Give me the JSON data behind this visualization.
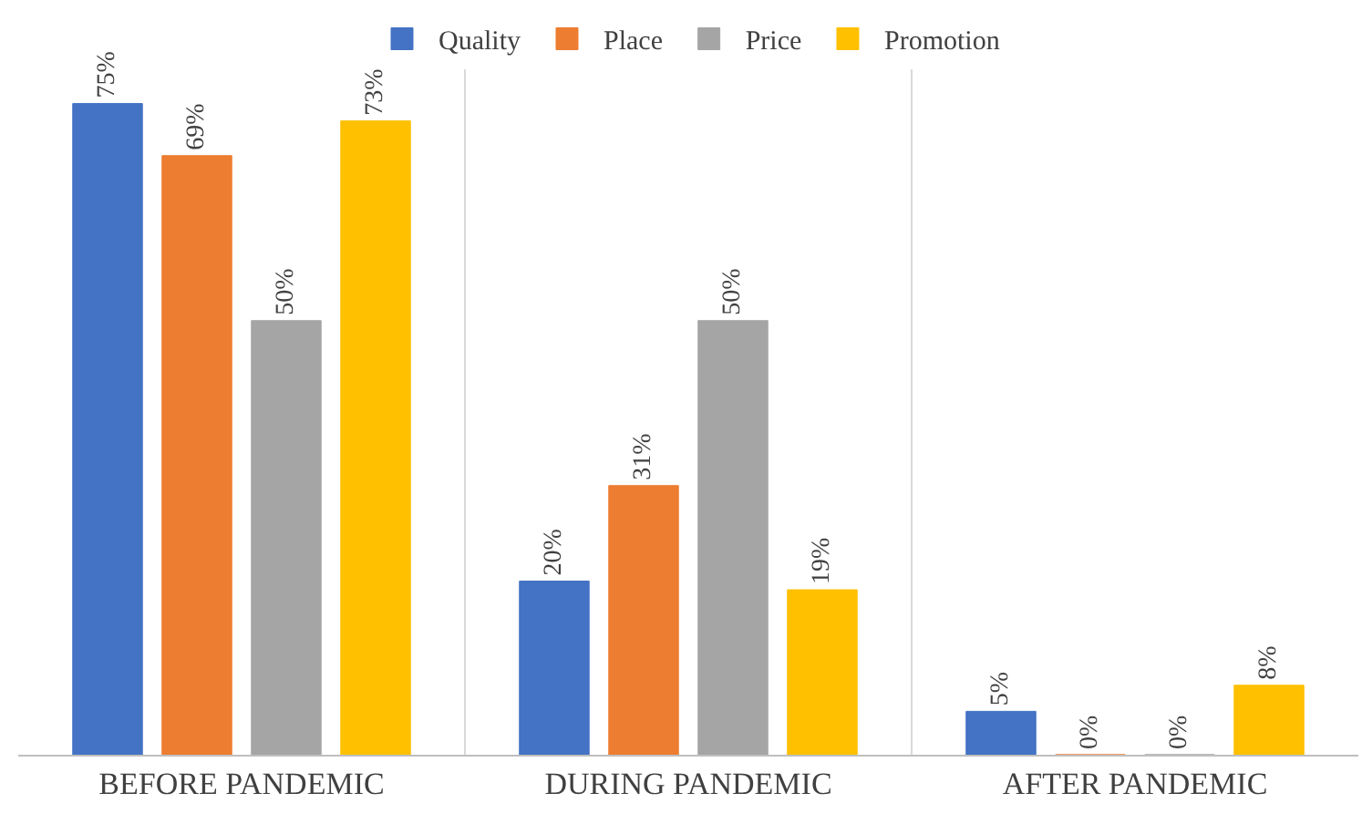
{
  "chart_data": {
    "type": "bar",
    "categories": [
      "BEFORE PANDEMIC",
      "DURING PANDEMIC",
      "AFTER PANDEMIC"
    ],
    "series": [
      {
        "name": "Quality",
        "color": "#4472c4",
        "values": [
          75,
          20,
          5
        ],
        "value_labels": [
          "75%",
          "20%",
          "5%"
        ]
      },
      {
        "name": "Place",
        "color": "#ed7d31",
        "values": [
          69,
          31,
          0
        ],
        "value_labels": [
          "69%",
          "31%",
          "0%"
        ]
      },
      {
        "name": "Price",
        "color": "#a5a5a5",
        "values": [
          50,
          50,
          0
        ],
        "value_labels": [
          "50%",
          "50%",
          "0%"
        ]
      },
      {
        "name": "Promotion",
        "color": "#ffc000",
        "values": [
          73,
          19,
          8
        ],
        "value_labels": [
          "73%",
          "19%",
          "8%"
        ]
      }
    ],
    "grid": "x",
    "legend": "top"
  }
}
